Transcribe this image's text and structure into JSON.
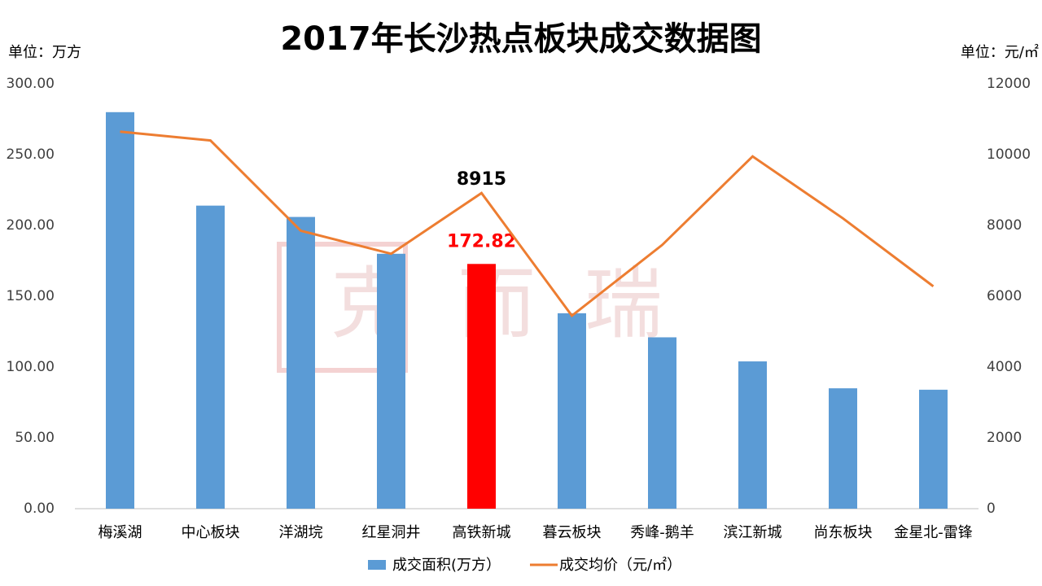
{
  "chart_data": {
    "type": "bar-line",
    "title": "2017年长沙热点板块成交数据图",
    "y_label": "单位：万方",
    "y2_label": "单位：元/㎡",
    "watermark": "克而瑞",
    "categories": [
      "梅溪湖",
      "中心板块",
      "洋湖垸",
      "红星洞井",
      "高铁新城",
      "暮云板块",
      "秀峰-鹅羊",
      "滨江新城",
      "尚东板块",
      "金星北-雷锋"
    ],
    "series": [
      {
        "name": "成交面积(万方）",
        "type": "bar",
        "color": "#5b9bd5",
        "colors": [
          "#5b9bd5",
          "#5b9bd5",
          "#5b9bd5",
          "#5b9bd5",
          "#ff0000",
          "#5b9bd5",
          "#5b9bd5",
          "#5b9bd5",
          "#5b9bd5",
          "#5b9bd5"
        ],
        "values": [
          280,
          214,
          206,
          180,
          172.82,
          138,
          121,
          104,
          85,
          84
        ],
        "value_labels": [
          null,
          null,
          null,
          null,
          "172.82",
          null,
          null,
          null,
          null,
          null
        ]
      },
      {
        "name": "成交均价（元/㎡）",
        "type": "line",
        "axis": "y2",
        "color": "#ed7d31",
        "values": [
          10650,
          10400,
          7850,
          7200,
          8915,
          5450,
          7450,
          9950,
          8200,
          6280
        ],
        "value_labels": [
          null,
          null,
          null,
          null,
          "8915",
          null,
          null,
          null,
          null,
          null
        ]
      }
    ],
    "ylim": [
      0,
      300
    ],
    "yticks": [
      {
        "value": 0,
        "label": "0.00"
      },
      {
        "value": 50,
        "label": "50.00"
      },
      {
        "value": 100,
        "label": "100.00"
      },
      {
        "value": 150,
        "label": "150.00"
      },
      {
        "value": 200,
        "label": "200.00"
      },
      {
        "value": 250,
        "label": "250.00"
      },
      {
        "value": 300,
        "label": "300.00"
      }
    ],
    "y2lim": [
      0,
      12000
    ],
    "y2ticks": [
      0,
      2000,
      4000,
      6000,
      8000,
      10000,
      12000
    ],
    "grid": false
  }
}
